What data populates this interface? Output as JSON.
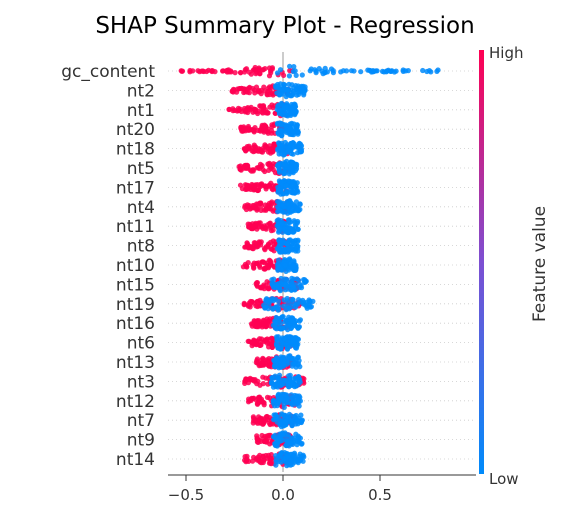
{
  "chart_data": {
    "type": "scatter",
    "title": "SHAP Summary Plot - Regression",
    "xlabel": "",
    "ylabel": "",
    "xlim": [
      -0.6,
      0.85
    ],
    "x_ticks": [
      -0.5,
      0.0,
      0.5
    ],
    "x_tick_labels": [
      "−0.5",
      "0.0",
      "0.5"
    ],
    "grid": false,
    "colorbar": {
      "label": "Feature value",
      "high_label": "High",
      "low_label": "Low",
      "high_color": "#ff0052",
      "low_color": "#008bfb"
    },
    "features": [
      {
        "name": "gc_content",
        "shap_min": -0.53,
        "shap_max": 0.82,
        "red_min": -0.53,
        "red_max": 0.05,
        "blue_min": -0.05,
        "blue_max": 0.82
      },
      {
        "name": "nt2",
        "shap_min": -0.27,
        "shap_max": 0.12,
        "red_min": -0.27,
        "red_max": 0.03,
        "blue_min": -0.04,
        "blue_max": 0.12
      },
      {
        "name": "nt1",
        "shap_min": -0.28,
        "shap_max": 0.07,
        "red_min": -0.28,
        "red_max": 0.02,
        "blue_min": -0.03,
        "blue_max": 0.07
      },
      {
        "name": "nt20",
        "shap_min": -0.22,
        "shap_max": 0.08,
        "red_min": -0.22,
        "red_max": 0.02,
        "blue_min": -0.03,
        "blue_max": 0.08
      },
      {
        "name": "nt18",
        "shap_min": -0.2,
        "shap_max": 0.1,
        "red_min": -0.2,
        "red_max": 0.03,
        "blue_min": -0.03,
        "blue_max": 0.1
      },
      {
        "name": "nt5",
        "shap_min": -0.23,
        "shap_max": 0.07,
        "red_min": -0.23,
        "red_max": 0.02,
        "blue_min": -0.03,
        "blue_max": 0.07
      },
      {
        "name": "nt17",
        "shap_min": -0.22,
        "shap_max": 0.08,
        "red_min": -0.22,
        "red_max": 0.02,
        "blue_min": -0.03,
        "blue_max": 0.08
      },
      {
        "name": "nt4",
        "shap_min": -0.2,
        "shap_max": 0.09,
        "red_min": -0.2,
        "red_max": 0.03,
        "blue_min": -0.03,
        "blue_max": 0.09
      },
      {
        "name": "nt11",
        "shap_min": -0.18,
        "shap_max": 0.08,
        "red_min": -0.18,
        "red_max": 0.03,
        "blue_min": -0.03,
        "blue_max": 0.08
      },
      {
        "name": "nt8",
        "shap_min": -0.2,
        "shap_max": 0.08,
        "red_min": -0.2,
        "red_max": 0.03,
        "blue_min": -0.03,
        "blue_max": 0.08
      },
      {
        "name": "nt10",
        "shap_min": -0.21,
        "shap_max": 0.07,
        "red_min": -0.21,
        "red_max": 0.02,
        "blue_min": -0.03,
        "blue_max": 0.07
      },
      {
        "name": "nt15",
        "shap_min": -0.14,
        "shap_max": 0.12,
        "red_min": -0.14,
        "red_max": 0.08,
        "blue_min": -0.06,
        "blue_max": 0.12
      },
      {
        "name": "nt19",
        "shap_min": -0.23,
        "shap_max": 0.16,
        "red_min": -0.23,
        "red_max": 0.1,
        "blue_min": -0.1,
        "blue_max": 0.16
      },
      {
        "name": "nt16",
        "shap_min": -0.17,
        "shap_max": 0.09,
        "red_min": -0.17,
        "red_max": 0.05,
        "blue_min": -0.05,
        "blue_max": 0.09
      },
      {
        "name": "nt6",
        "shap_min": -0.18,
        "shap_max": 0.08,
        "red_min": -0.18,
        "red_max": 0.04,
        "blue_min": -0.04,
        "blue_max": 0.08
      },
      {
        "name": "nt13",
        "shap_min": -0.14,
        "shap_max": 0.09,
        "red_min": -0.14,
        "red_max": 0.05,
        "blue_min": -0.05,
        "blue_max": 0.09
      },
      {
        "name": "nt3",
        "shap_min": -0.2,
        "shap_max": 0.11,
        "red_min": -0.2,
        "red_max": 0.11,
        "blue_min": -0.06,
        "blue_max": 0.09
      },
      {
        "name": "nt12",
        "shap_min": -0.18,
        "shap_max": 0.09,
        "red_min": -0.18,
        "red_max": 0.06,
        "blue_min": -0.05,
        "blue_max": 0.09
      },
      {
        "name": "nt7",
        "shap_min": -0.16,
        "shap_max": 0.1,
        "red_min": -0.16,
        "red_max": 0.07,
        "blue_min": -0.05,
        "blue_max": 0.1
      },
      {
        "name": "nt9",
        "shap_min": -0.14,
        "shap_max": 0.1,
        "red_min": -0.14,
        "red_max": 0.05,
        "blue_min": -0.05,
        "blue_max": 0.1
      },
      {
        "name": "nt14",
        "shap_min": -0.2,
        "shap_max": 0.11,
        "red_min": -0.2,
        "red_max": 0.05,
        "blue_min": -0.04,
        "blue_max": 0.11
      }
    ]
  }
}
